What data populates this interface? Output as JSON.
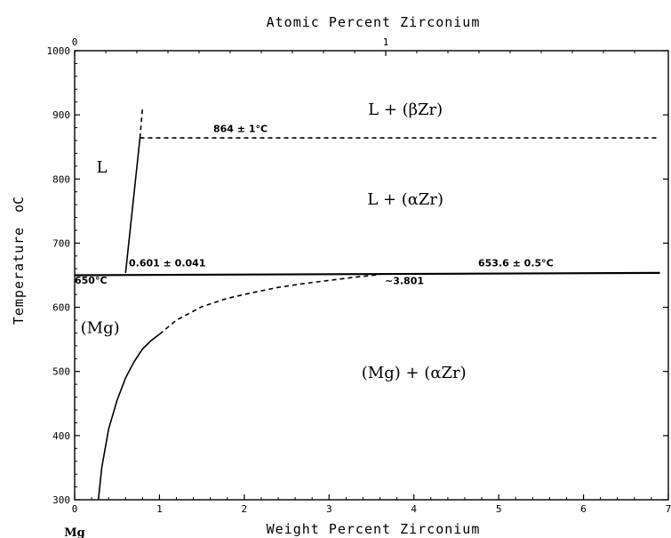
{
  "chart_data": {
    "type": "line",
    "title": "",
    "top_axis_label": "Atomic Percent Zirconium",
    "top_ticks": [
      "0",
      "1"
    ],
    "xlabel": "Weight Percent Zirconium",
    "x_origin_label": "Mg",
    "ylabel": "Temperature",
    "ylabel_unit": "oC",
    "xlim": [
      0,
      7
    ],
    "ylim": [
      300,
      1000
    ],
    "x_ticks": [
      0,
      1,
      2,
      3,
      4,
      5,
      6,
      7
    ],
    "y_ticks": [
      300,
      400,
      500,
      600,
      700,
      800,
      900,
      1000
    ],
    "grid": false,
    "series": [
      {
        "style": "dashed",
        "x": [
          0.77,
          6.9
        ],
        "y": [
          864,
          864
        ]
      },
      {
        "style": "solid",
        "x": [
          0.6,
          0.77
        ],
        "y": [
          653.6,
          864
        ]
      },
      {
        "style": "dashed",
        "x": [
          0.77,
          0.8
        ],
        "y": [
          864,
          910
        ]
      },
      {
        "style": "solid",
        "x": [
          0.0,
          6.9
        ],
        "y": [
          650,
          653.6
        ]
      },
      {
        "style": "solid",
        "x": [
          0.28,
          0.32,
          0.4,
          0.5,
          0.6,
          0.7,
          0.8,
          0.9,
          1.0
        ],
        "y": [
          300,
          350,
          410,
          455,
          490,
          515,
          535,
          548,
          558
        ]
      },
      {
        "style": "dashed",
        "x": [
          1.0,
          1.2,
          1.5,
          1.8,
          2.1,
          2.4,
          2.7,
          3.0,
          3.3,
          3.6
        ],
        "y": [
          558,
          580,
          601,
          614,
          623,
          631,
          637,
          642,
          647,
          651
        ]
      }
    ],
    "annotations": [
      {
        "text": "L",
        "x": 0.32,
        "y": 810
      },
      {
        "text": "L + (βZr)",
        "x": 3.9,
        "y": 900
      },
      {
        "text": "L + (αZr)",
        "x": 3.9,
        "y": 760
      },
      {
        "text": "(Mg)",
        "x": 0.3,
        "y": 560
      },
      {
        "text": "(Mg) + (αZr)",
        "x": 4.0,
        "y": 490
      },
      {
        "text": "864 ± 1°C",
        "x": 1.7,
        "y": 873
      },
      {
        "text": "0.601 ± 0.041",
        "x": 1.1,
        "y": 664
      },
      {
        "text": "650°C",
        "x": 0.22,
        "y": 637
      },
      {
        "text": "653.6 ± 0.5°C",
        "x": 5.2,
        "y": 664
      },
      {
        "text": "~3.801",
        "x": 3.8,
        "y": 636
      }
    ]
  }
}
